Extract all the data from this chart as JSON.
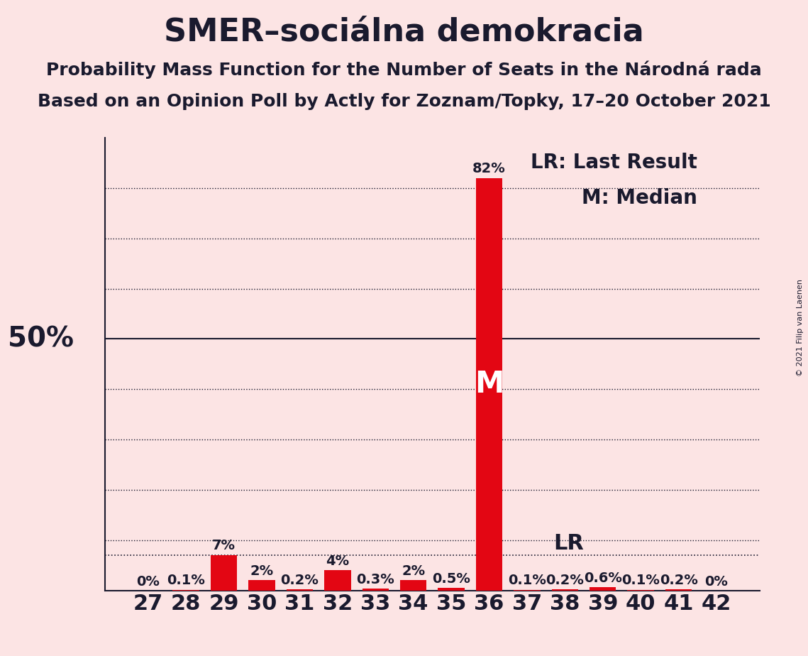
{
  "title": "SMER–sociálna demokracia",
  "subtitle1": "Probability Mass Function for the Number of Seats in the Národná rada",
  "subtitle2": "Based on an Opinion Poll by Actly for Zoznam/Topky, 17–20 October 2021",
  "copyright": "© 2021 Filip van Laenen",
  "seats": [
    27,
    28,
    29,
    30,
    31,
    32,
    33,
    34,
    35,
    36,
    37,
    38,
    39,
    40,
    41,
    42
  ],
  "probabilities": [
    0.0,
    0.1,
    7.0,
    2.0,
    0.2,
    4.0,
    0.3,
    2.0,
    0.5,
    82.0,
    0.1,
    0.2,
    0.6,
    0.1,
    0.2,
    0.0
  ],
  "labels": [
    "0%",
    "0.1%",
    "7%",
    "2%",
    "0.2%",
    "4%",
    "0.3%",
    "2%",
    "0.5%",
    "82%",
    "0.1%",
    "0.2%",
    "0.6%",
    "0.1%",
    "0.2%",
    "0%"
  ],
  "bar_color": "#e30613",
  "background_color": "#fce4e4",
  "text_color": "#1a1a2e",
  "median_seat": 36,
  "last_result_seat": 37,
  "last_result_prob": 7.0,
  "median_label": "M",
  "lr_label": "LR",
  "legend_lr": "LR: Last Result",
  "legend_m": "M: Median",
  "ylim": [
    0,
    90
  ],
  "ytick_dotted": [
    10,
    20,
    30,
    40,
    60,
    70,
    80
  ],
  "ytick_solid": [
    50
  ],
  "ylabel_50_pos": 50,
  "title_fontsize": 32,
  "subtitle_fontsize": 18,
  "xtick_fontsize": 22,
  "bar_label_fontsize": 14,
  "legend_fontsize": 20,
  "median_label_fontsize": 30,
  "lr_label_fontsize": 22,
  "ylabel_fontsize": 28
}
